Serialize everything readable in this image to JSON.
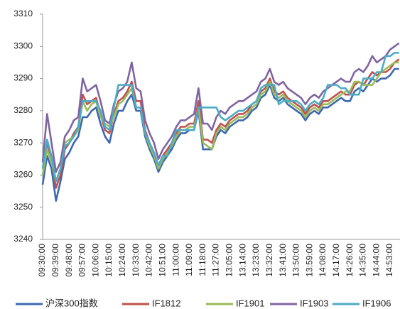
{
  "chart_data": {
    "type": "line",
    "categories": [
      "09:30:00",
      null,
      null,
      "09:39:00",
      null,
      null,
      "09:48:00",
      null,
      null,
      "09:57:00",
      null,
      null,
      "10:06:00",
      null,
      null,
      "10:15:00",
      null,
      null,
      "10:24:00",
      null,
      null,
      "10:33:00",
      null,
      null,
      "10:42:00",
      null,
      null,
      "10:51:00",
      null,
      null,
      "11:00:00",
      null,
      null,
      "11:09:00",
      null,
      null,
      "11:18:00",
      null,
      null,
      "11:27:00",
      null,
      null,
      "13:05:00",
      null,
      null,
      "13:14:00",
      null,
      null,
      "13:23:00",
      null,
      null,
      "13:32:00",
      null,
      null,
      "13:41:00",
      null,
      null,
      "13:50:00",
      null,
      null,
      "13:59:00",
      null,
      null,
      "14:08:00",
      null,
      null,
      "14:17:00",
      null,
      null,
      "14:26:00",
      null,
      null,
      "14:35:00",
      null,
      null,
      "14:44:00",
      null,
      null,
      "14:53:00",
      null,
      null
    ],
    "series": [
      {
        "name": "沪深300指数",
        "color": "#3d68b0",
        "values": [
          3257,
          3266,
          3262,
          3252,
          3258,
          3265,
          3267,
          3270,
          3272,
          3278,
          3278,
          3280,
          3281,
          3276,
          3272,
          3270,
          3276,
          3280,
          3280,
          3283,
          3285,
          3280,
          3280,
          3272,
          3268,
          3265,
          3261,
          3264,
          3266,
          3268,
          3271,
          3273,
          3273,
          3274,
          3274,
          3280,
          3268,
          3268,
          3268,
          3272,
          3274,
          3273,
          3275,
          3276,
          3277,
          3277,
          3278,
          3280,
          3281,
          3284,
          3285,
          3288,
          3284,
          3283,
          3284,
          3282,
          3281,
          3280,
          3279,
          3277,
          3279,
          3280,
          3279,
          3281,
          3281,
          3282,
          3283,
          3284,
          3283,
          3283,
          3286,
          3287,
          3286,
          3288,
          3290,
          3289,
          3290,
          3290,
          3291,
          3293,
          3293
        ]
      },
      {
        "name": "IF1812",
        "color": "#c0504d",
        "values": [
          3262,
          3270,
          3265,
          3256,
          3260,
          3268,
          3270,
          3273,
          3275,
          3285,
          3282,
          3283,
          3284,
          3279,
          3274,
          3273,
          3279,
          3283,
          3284,
          3286,
          3289,
          3283,
          3283,
          3274,
          3270,
          3267,
          3263,
          3266,
          3268,
          3270,
          3273,
          3275,
          3275,
          3276,
          3276,
          3283,
          3271,
          3271,
          3270,
          3274,
          3276,
          3275,
          3277,
          3278,
          3279,
          3279,
          3280,
          3282,
          3283,
          3286,
          3287,
          3290,
          3286,
          3285,
          3286,
          3284,
          3283,
          3282,
          3281,
          3279,
          3281,
          3282,
          3281,
          3283,
          3283,
          3284,
          3285,
          3286,
          3285,
          3285,
          3288,
          3289,
          3288,
          3290,
          3292,
          3291,
          3292,
          3292,
          3293,
          3295,
          3296
        ]
      },
      {
        "name": "IF1901",
        "color": "#9bbb59",
        "values": [
          3260,
          3268,
          3264,
          3258,
          3262,
          3270,
          3271,
          3272,
          3274,
          3283,
          3280,
          3282,
          3283,
          3278,
          3276,
          3275,
          3278,
          3282,
          3283,
          3285,
          3287,
          3281,
          3281,
          3273,
          3269,
          3266,
          3262,
          3265,
          3267,
          3269,
          3272,
          3274,
          3274,
          3275,
          3275,
          3281,
          3270,
          3269,
          3268,
          3273,
          3275,
          3274,
          3276,
          3277,
          3278,
          3278,
          3279,
          3281,
          3282,
          3285,
          3286,
          3289,
          3285,
          3284,
          3285,
          3283,
          3282,
          3281,
          3280,
          3278,
          3280,
          3281,
          3280,
          3282,
          3282,
          3283,
          3284,
          3285,
          3286,
          3286,
          3289,
          3289,
          3288,
          3288,
          3288,
          3290,
          3292,
          3293,
          3294,
          3295,
          3295
        ]
      },
      {
        "name": "IF1903",
        "color": "#8064a2",
        "values": [
          3264,
          3279,
          3270,
          3261,
          3264,
          3272,
          3274,
          3277,
          3278,
          3290,
          3286,
          3287,
          3288,
          3283,
          3277,
          3276,
          3282,
          3286,
          3287,
          3289,
          3295,
          3287,
          3286,
          3277,
          3273,
          3270,
          3265,
          3268,
          3270,
          3272,
          3275,
          3277,
          3277,
          3278,
          3279,
          3287,
          3276,
          3276,
          3274,
          3278,
          3280,
          3279,
          3281,
          3282,
          3283,
          3283,
          3284,
          3285,
          3286,
          3289,
          3290,
          3293,
          3289,
          3288,
          3289,
          3287,
          3286,
          3285,
          3284,
          3282,
          3284,
          3285,
          3284,
          3286,
          3287,
          3288,
          3289,
          3290,
          3289,
          3289,
          3292,
          3293,
          3292,
          3294,
          3297,
          3295,
          3296,
          3297,
          3299,
          3300,
          3301
        ]
      },
      {
        "name": "IF1906",
        "color": "#4bacc6",
        "values": [
          3262,
          3271,
          3266,
          3258,
          3262,
          3269,
          3270,
          3272,
          3275,
          3283,
          3283,
          3283,
          3283,
          3280,
          3275,
          3274,
          3281,
          3288,
          3288,
          3288,
          3288,
          3281,
          3281,
          3273,
          3270,
          3267,
          3263,
          3266,
          3266,
          3270,
          3274,
          3274,
          3274,
          3274,
          3274,
          3281,
          3281,
          3281,
          3281,
          3281,
          3278,
          3277,
          3278,
          3279,
          3280,
          3280,
          3281,
          3282,
          3283,
          3287,
          3288,
          3288,
          3288,
          3282,
          3283,
          3283,
          3283,
          3283,
          3282,
          3280,
          3282,
          3283,
          3282,
          3284,
          3288,
          3288,
          3288,
          3287,
          3287,
          3285,
          3285,
          3285,
          3290,
          3290,
          3290,
          3292,
          3292,
          3297,
          3297,
          3298,
          3298
        ]
      }
    ],
    "ylim": [
      3240,
      3310
    ],
    "yticks": [
      3240,
      3250,
      3260,
      3270,
      3280,
      3290,
      3300,
      3310
    ],
    "grid": false
  }
}
